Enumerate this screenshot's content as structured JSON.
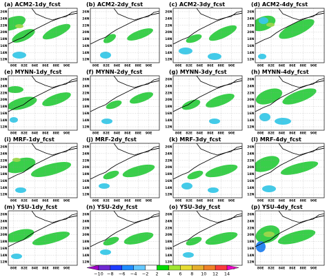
{
  "chart_data": {
    "type": "heatmap",
    "title": "",
    "panels": [
      {
        "label": "(a)",
        "scheme": "ACM2",
        "lead": "1dy",
        "title": "ACM2-1dy_fcst"
      },
      {
        "label": "(b)",
        "scheme": "ACM2",
        "lead": "2dy",
        "title": "ACM2-2dy_fcst"
      },
      {
        "label": "(c)",
        "scheme": "ACM2",
        "lead": "3dy",
        "title": "ACM2-3dy_fcst"
      },
      {
        "label": "(d)",
        "scheme": "ACM2",
        "lead": "4dy",
        "title": "ACM2-4dy_fcst"
      },
      {
        "label": "(e)",
        "scheme": "MYNN",
        "lead": "1dy",
        "title": "MYNN-1dy_fcst"
      },
      {
        "label": "(f)",
        "scheme": "MYNN",
        "lead": "2dy",
        "title": "MYNN-2dy_fcst"
      },
      {
        "label": "(g)",
        "scheme": "MYNN",
        "lead": "3dy",
        "title": "MYNN-3dy_fcst"
      },
      {
        "label": "(h)",
        "scheme": "MYNN",
        "lead": "4dy",
        "title": "MYNN-4dy_fcst"
      },
      {
        "label": "(i)",
        "scheme": "MRF",
        "lead": "1dy",
        "title": "MRF-1dy_fcst"
      },
      {
        "label": "(j)",
        "scheme": "MRF",
        "lead": "2dy",
        "title": "MRF-2dy_fcst"
      },
      {
        "label": "(k)",
        "scheme": "MRF",
        "lead": "3dy",
        "title": "MRF-3dy_fcst"
      },
      {
        "label": "(l)",
        "scheme": "MRF",
        "lead": "4dy",
        "title": "MRF-4dy_fcst"
      },
      {
        "label": "(m)",
        "scheme": "YSU",
        "lead": "1dy",
        "title": "YSU-1dy_fcst"
      },
      {
        "label": "(n)",
        "scheme": "YSU",
        "lead": "2dy",
        "title": "YSU-2dy_fcst"
      },
      {
        "label": "(o)",
        "scheme": "YSU",
        "lead": "3dy",
        "title": "YSU-3dy_fcst"
      },
      {
        "label": "(p)",
        "scheme": "YSU",
        "lead": "4dy",
        "title": "YSU-4dy_fcst"
      }
    ],
    "y_ticks": [
      "26N",
      "24N",
      "22N",
      "20N",
      "18N",
      "16N",
      "14N",
      "12N"
    ],
    "y_values": [
      26,
      24,
      22,
      20,
      18,
      16,
      14,
      12
    ],
    "x_ticks": [
      "80E",
      "82E",
      "84E",
      "86E",
      "88E",
      "90E"
    ],
    "x_values": [
      80,
      82,
      84,
      86,
      88,
      90
    ],
    "xlim": [
      79,
      92
    ],
    "ylim": [
      11,
      27
    ],
    "grid": true,
    "colorbar": {
      "placement": "bottom",
      "ticks": [
        -10,
        -8,
        -6,
        -4,
        -2,
        2,
        4,
        6,
        8,
        10,
        12,
        14
      ],
      "tick_labels": [
        "−10",
        "−8",
        "−6",
        "−4",
        "−2",
        "2",
        "4",
        "6",
        "8",
        "10",
        "12",
        "14"
      ],
      "colors": [
        "#a000c8",
        "#6e28d2",
        "#1e3cff",
        "#1e8cff",
        "#64c8ff",
        "#ffffff",
        "#00dc00",
        "#a0e632",
        "#e6dc32",
        "#e6af2d",
        "#f08228",
        "#fa3c3c",
        "#f000c8"
      ]
    },
    "colors": {
      "positive": "#2ecc40",
      "positive_strong": "#9dd84a",
      "positive_peak": "#e0d040",
      "negative": "#38c8e8",
      "negative_strong": "#2080f0"
    }
  }
}
